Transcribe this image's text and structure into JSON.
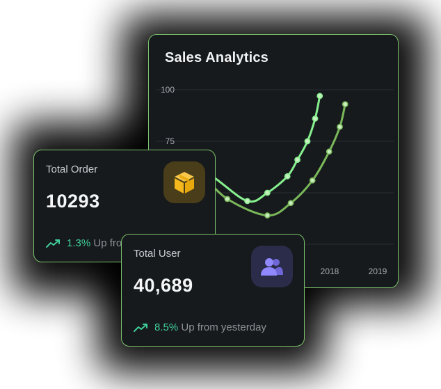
{
  "analytics": {
    "title": "Sales Analytics",
    "y_ticks": [
      "100",
      "75"
    ],
    "x_ticks": [
      "2018",
      "2019"
    ]
  },
  "chart_data": {
    "type": "line",
    "title": "Sales Analytics",
    "ylim": [
      0,
      100
    ],
    "grid": true,
    "x_tick_labels": [
      "2018",
      "2019"
    ],
    "series": [
      {
        "color": "#86f08f",
        "points": [
          [
            0.0,
            62
          ],
          [
            0.55,
            69
          ],
          [
            1.65,
            58
          ],
          [
            2.7,
            46
          ],
          [
            3.3,
            50
          ],
          [
            3.9,
            58
          ],
          [
            4.2,
            66
          ],
          [
            4.5,
            75
          ],
          [
            4.73,
            86
          ],
          [
            4.87,
            97
          ]
        ]
      },
      {
        "color": "#7ab85a",
        "points": [
          [
            0.0,
            56
          ],
          [
            1.0,
            62
          ],
          [
            2.1,
            47
          ],
          [
            3.3,
            39
          ],
          [
            4.0,
            45
          ],
          [
            4.65,
            56
          ],
          [
            5.15,
            70
          ],
          [
            5.47,
            82
          ],
          [
            5.63,
            93
          ]
        ]
      }
    ]
  },
  "total_order": {
    "label": "Total Order",
    "value": "10293",
    "trend_pct": "1.3%",
    "trend_text": "Up from past week",
    "icon": "package-box-icon",
    "icon_color": "#f5b81c"
  },
  "total_user": {
    "label": "Total User",
    "value": "40,689",
    "trend_pct": "8.5%",
    "trend_text": "Up from yesterday",
    "icon": "users-group-icon",
    "icon_color": "#8a83f5"
  },
  "colors": {
    "card_bg": "#171a1c",
    "card_border": "#7bc36c",
    "trend_up": "#3fcf9b"
  }
}
